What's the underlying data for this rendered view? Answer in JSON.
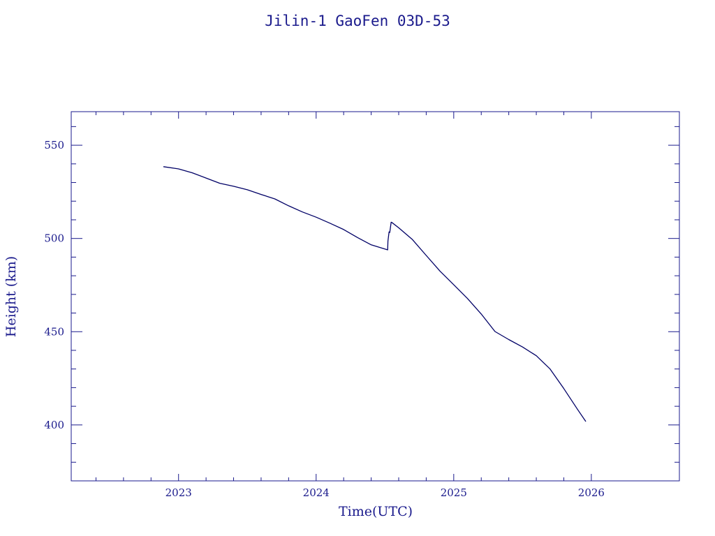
{
  "chart_data": {
    "type": "line",
    "title": "Jilin-1 GaoFen 03D-53",
    "xlabel": "Time(UTC)",
    "ylabel": "Height (km)",
    "xlim": [
      2022.22,
      2026.64
    ],
    "ylim": [
      370,
      568
    ],
    "xticks": [
      2023,
      2024,
      2025,
      2026
    ],
    "xtick_labels": [
      "2023",
      "2024",
      "2025",
      "2026"
    ],
    "yticks": [
      400,
      450,
      500,
      550
    ],
    "ytick_labels": [
      "400",
      "450",
      "500",
      "550"
    ],
    "grid": false,
    "colors": {
      "axis": "#1a1a8c",
      "line": "#000066"
    },
    "series": [
      {
        "x": [
          2022.89,
          2023.0,
          2023.1,
          2023.2,
          2023.3,
          2023.4,
          2023.5,
          2023.6,
          2023.7,
          2023.8,
          2023.9,
          2024.0,
          2024.1,
          2024.2,
          2024.3,
          2024.4,
          2024.47,
          2024.52,
          2024.522,
          2024.53,
          2024.535,
          2024.545,
          2024.55,
          2024.6,
          2024.7,
          2024.8,
          2024.9,
          2025.0,
          2025.1,
          2025.2,
          2025.3,
          2025.4,
          2025.5,
          2025.6,
          2025.7,
          2025.8,
          2025.9,
          2025.96
        ],
        "y": [
          538.5,
          537.3,
          535.2,
          532.4,
          529.6,
          528.0,
          526.1,
          523.6,
          521.2,
          517.5,
          514.2,
          511.4,
          508.2,
          504.8,
          500.5,
          496.6,
          495.0,
          493.9,
          498.6,
          503.5,
          503.2,
          508.7,
          508.6,
          505.7,
          499.4,
          490.9,
          482.5,
          475.2,
          467.8,
          459.5,
          450.1,
          445.8,
          441.8,
          437.1,
          430.0,
          419.5,
          408.3,
          401.8
        ]
      }
    ]
  }
}
